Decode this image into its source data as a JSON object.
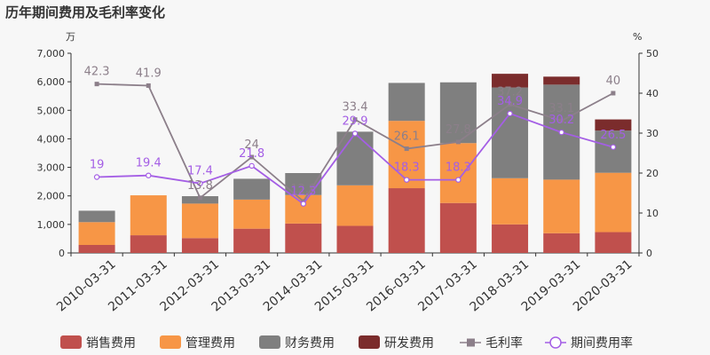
{
  "chart_data": {
    "type": "bar",
    "title": "历年期间费用及毛利率变化",
    "left_unit": "万",
    "right_unit": "%",
    "categories": [
      "2010-03-31",
      "2011-03-31",
      "2012-03-31",
      "2013-03-31",
      "2014-03-31",
      "2015-03-31",
      "2016-03-31",
      "2017-03-31",
      "2018-03-31",
      "2019-03-31",
      "2020-03-31"
    ],
    "stacked": true,
    "ylim": [
      0,
      7000
    ],
    "yticks": [
      0,
      1000,
      2000,
      3000,
      4000,
      5000,
      6000,
      7000
    ],
    "ytick_labels": [
      "0",
      "1,000",
      "2,000",
      "3,000",
      "4,000",
      "5,000",
      "6,000",
      "7,000"
    ],
    "y2lim": [
      0,
      50
    ],
    "y2ticks": [
      0,
      10,
      20,
      30,
      40,
      50
    ],
    "series": [
      {
        "name": "销售费用",
        "kind": "bar",
        "color": "#c0504d",
        "values": [
          280,
          620,
          520,
          850,
          1030,
          950,
          2270,
          1750,
          1000,
          690,
          730
        ]
      },
      {
        "name": "管理费用",
        "kind": "bar",
        "color": "#f79646",
        "values": [
          800,
          1400,
          1210,
          1020,
          1000,
          1420,
          2360,
          2100,
          1620,
          1880,
          2080
        ]
      },
      {
        "name": "财务费用",
        "kind": "bar",
        "color": "#7f7f7f",
        "values": [
          400,
          0,
          260,
          730,
          770,
          1880,
          1330,
          2130,
          3180,
          3330,
          1480
        ]
      },
      {
        "name": "研发费用",
        "kind": "bar",
        "color": "#7b2c2c",
        "values": [
          0,
          0,
          0,
          0,
          0,
          0,
          0,
          0,
          480,
          280,
          390
        ]
      },
      {
        "name": "毛利率",
        "kind": "line",
        "axis": "right",
        "color": "#8c7f8a",
        "values": [
          42.3,
          41.9,
          13.8,
          24,
          12.9,
          33.4,
          26.1,
          27.8,
          37.2,
          33.1,
          40
        ]
      },
      {
        "name": "期间费用率",
        "kind": "line",
        "axis": "right",
        "color": "#a45ee5",
        "values": [
          19,
          19.4,
          17.4,
          21.8,
          12.3,
          29.9,
          18.3,
          18.3,
          34.9,
          30.2,
          26.5
        ]
      }
    ],
    "grid": false,
    "legend": "bottom"
  }
}
